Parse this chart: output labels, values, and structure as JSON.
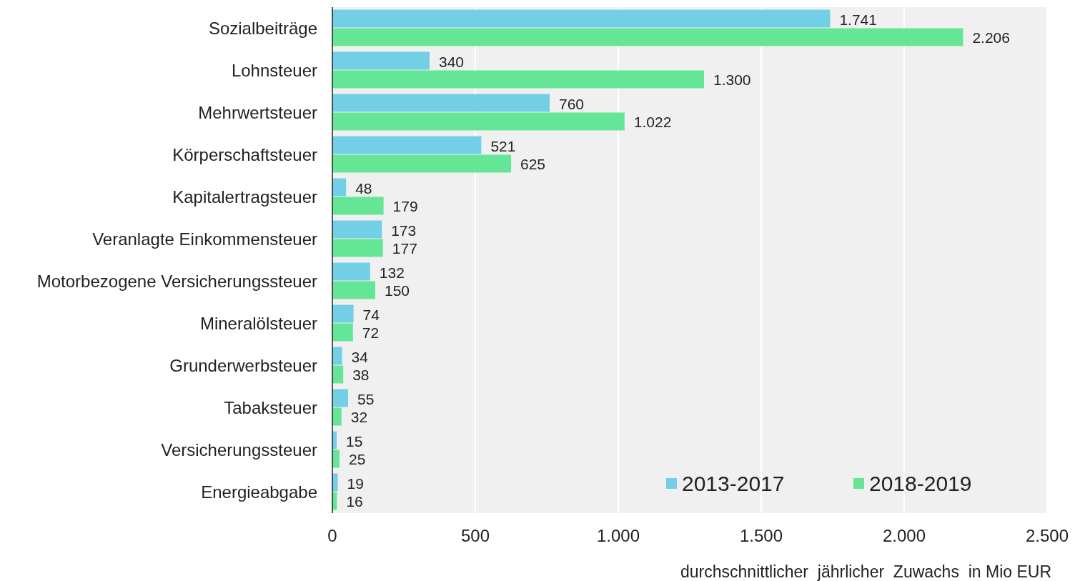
{
  "chart_data": {
    "type": "bar",
    "orientation": "horizontal",
    "categories": [
      "Sozialbeiträge",
      "Lohnsteuer",
      "Mehrwertsteuer",
      "Körperschaftsteuer",
      "Kapitalertragsteuer",
      "Veranlagte Einkommensteuer",
      "Motorbezogene Versicherungssteuer",
      "Mineralölsteuer",
      "Grunderwerbsteuer",
      "Tabaksteuer",
      "Versicherungssteuer",
      "Energieabgabe"
    ],
    "series": [
      {
        "name": "2013-2017",
        "color": "#72cfe6",
        "values": [
          1741,
          340,
          760,
          521,
          48,
          173,
          132,
          74,
          34,
          55,
          15,
          19
        ],
        "value_labels": [
          "1.741",
          "340",
          "760",
          "521",
          "48",
          "173",
          "132",
          "74",
          "34",
          "55",
          "15",
          "19"
        ]
      },
      {
        "name": "2018-2019",
        "color": "#64e696",
        "values": [
          2206,
          1300,
          1022,
          625,
          179,
          177,
          150,
          72,
          38,
          32,
          25,
          16
        ],
        "value_labels": [
          "2.206",
          "1.300",
          "1.022",
          "625",
          "179",
          "177",
          "150",
          "72",
          "38",
          "32",
          "25",
          "16"
        ]
      }
    ],
    "xlim": [
      0,
      2500
    ],
    "xticks": [
      0,
      {
        "value": 500,
        "label": "500"
      },
      {
        "value": 1000,
        "label": "1.000"
      },
      {
        "value": 1500,
        "label": "1.500"
      },
      {
        "value": 2000,
        "label": "2.000"
      },
      {
        "value": 2500,
        "label": "2.500"
      }
    ],
    "xlabel": "durchschnittlicher  jährlicher  Zuwachs  in Mio EUR",
    "grid": "x",
    "legend": "bottom right"
  }
}
